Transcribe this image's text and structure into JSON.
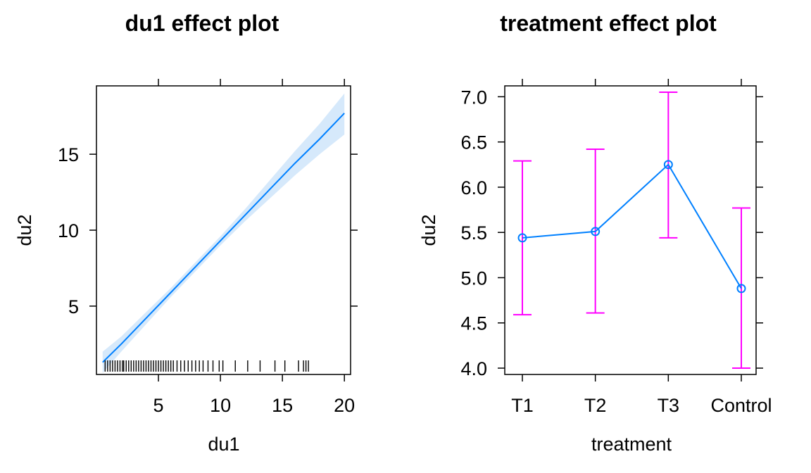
{
  "chart_data": [
    {
      "type": "line",
      "title": "du1 effect plot",
      "xlabel": "du1",
      "ylabel": "du2",
      "xlim": [
        0,
        20.5
      ],
      "ylim": [
        0.5,
        19.5
      ],
      "xticks": [
        5,
        10,
        15,
        20
      ],
      "yticks": [
        5,
        10,
        15
      ],
      "grid": false,
      "line_color": "#0080ff",
      "band_color": "#d6e9fb",
      "series": [
        {
          "x": [
            0.5,
            2,
            4,
            6,
            8,
            10,
            12,
            14,
            16,
            18,
            20
          ],
          "y": [
            1.3,
            2.5,
            4.2,
            5.9,
            7.6,
            9.3,
            11.0,
            12.7,
            14.4,
            16.0,
            17.7
          ],
          "lower": [
            0.6,
            2.0,
            3.8,
            5.6,
            7.3,
            9.0,
            10.6,
            12.1,
            13.6,
            15.0,
            16.3
          ],
          "upper": [
            2.0,
            3.0,
            4.6,
            6.2,
            7.9,
            9.6,
            11.4,
            13.3,
            15.2,
            17.0,
            19.0
          ]
        }
      ],
      "rug": [
        0.7,
        0.9,
        1.1,
        1.3,
        1.5,
        1.7,
        1.9,
        2.1,
        2.2,
        2.4,
        2.6,
        2.8,
        3.0,
        3.2,
        3.4,
        3.6,
        3.8,
        4.0,
        4.2,
        4.4,
        4.6,
        4.8,
        5.0,
        5.2,
        5.4,
        5.6,
        5.8,
        6.0,
        6.2,
        6.5,
        6.8,
        7.1,
        7.4,
        7.7,
        8.0,
        8.3,
        8.6,
        9.0,
        9.4,
        9.9,
        10.2,
        11.2,
        12.2,
        13.2,
        14.4,
        15.2,
        16.3,
        16.7,
        16.9,
        17.1
      ]
    },
    {
      "type": "line",
      "title": "treatment effect plot",
      "xlabel": "treatment",
      "ylabel": "du2",
      "categories": [
        "T1",
        "T2",
        "T3",
        "Control"
      ],
      "ylim": [
        3.93,
        7.12
      ],
      "yticks": [
        4.0,
        4.5,
        5.0,
        5.5,
        6.0,
        6.5,
        7.0
      ],
      "grid": false,
      "line_color": "#0080ff",
      "errorbar_color": "#ff00ff",
      "series": [
        {
          "values": [
            5.44,
            5.51,
            6.25,
            4.88
          ],
          "lower": [
            4.59,
            4.61,
            5.44,
            4.0
          ],
          "upper": [
            6.29,
            6.42,
            7.05,
            5.77
          ]
        }
      ]
    }
  ]
}
